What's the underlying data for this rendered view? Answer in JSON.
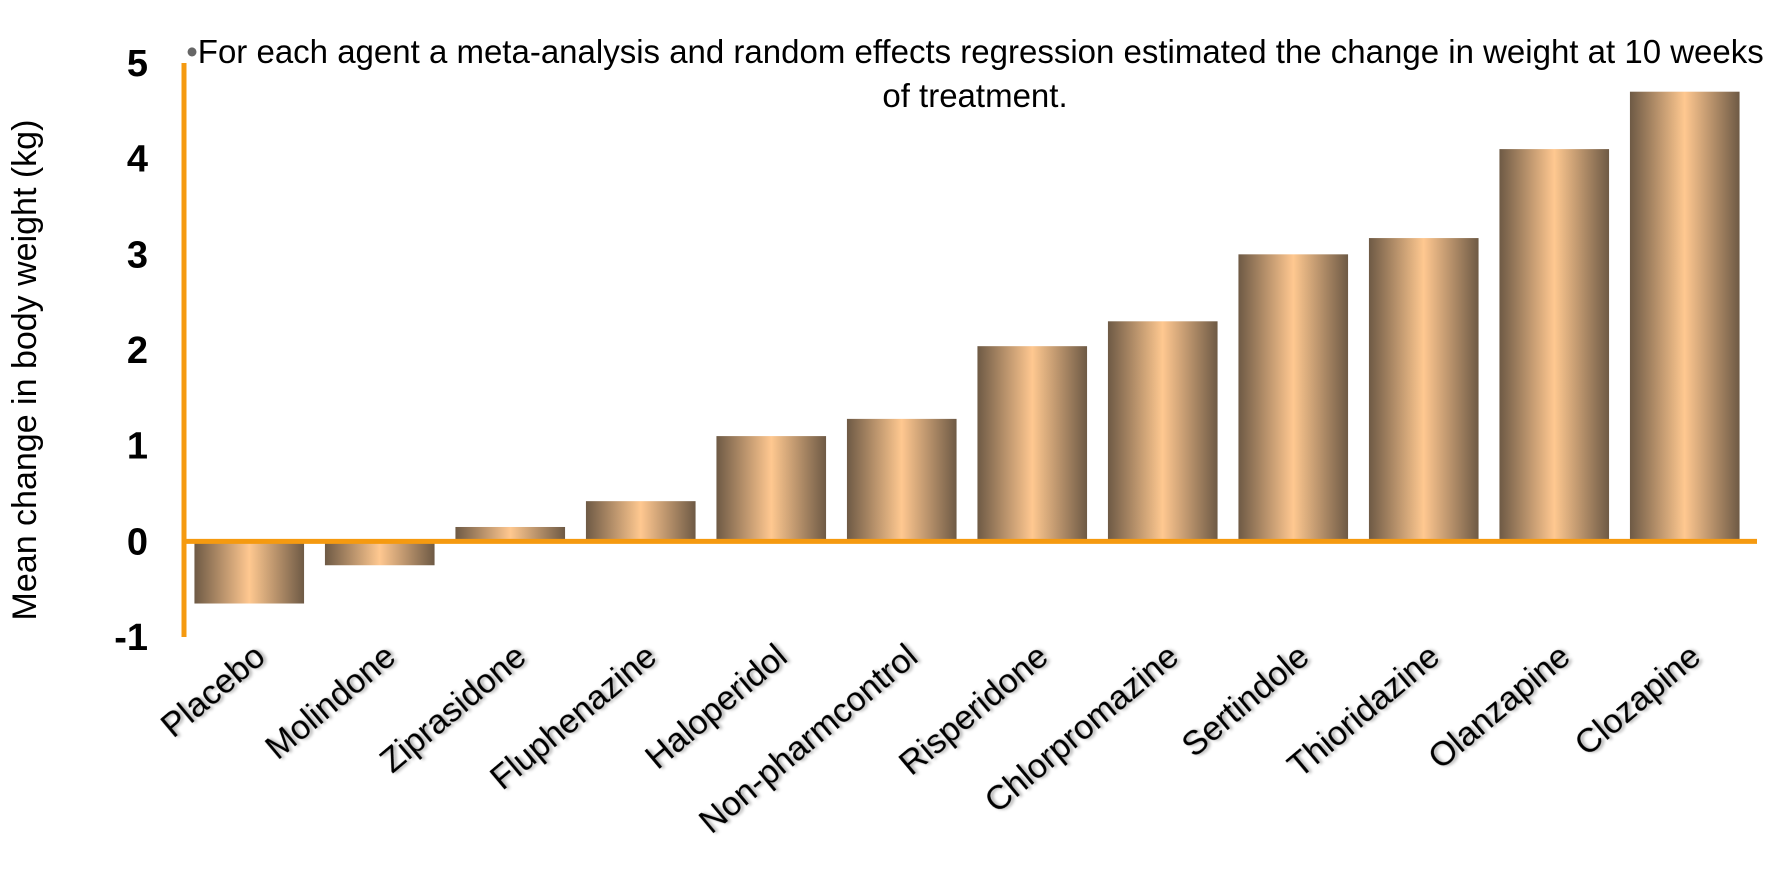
{
  "chart_data": {
    "type": "bar",
    "categories": [
      "Placebo",
      "Molindone",
      "Ziprasidone",
      "Fluphenazine",
      "Haloperidol",
      "Non-pharmcontrol",
      "Risperidone",
      "Chlorpromazine",
      "Sertindole",
      "Thioridazine",
      "Olanzapine",
      "Clozapine"
    ],
    "values": [
      -0.65,
      -0.25,
      0.15,
      0.42,
      1.1,
      1.28,
      2.04,
      2.3,
      3.0,
      3.17,
      4.1,
      4.7
    ],
    "title": "",
    "annotation_bullet": "•",
    "annotation": "For each agent a meta-analysis and random effects regression estimated the change in weight at 10 weeks of treatment.",
    "xlabel": "",
    "ylabel": "Mean change in body weight (kg)",
    "ylim": [
      -1,
      5
    ],
    "yticks": [
      "-1",
      "0",
      "1",
      "2",
      "3",
      "4",
      "5"
    ],
    "grid": false,
    "legend": "none",
    "axis_color": "#F59A10",
    "bar_light_color": "#FFC890",
    "bar_dark_color": "#6E5A45"
  }
}
